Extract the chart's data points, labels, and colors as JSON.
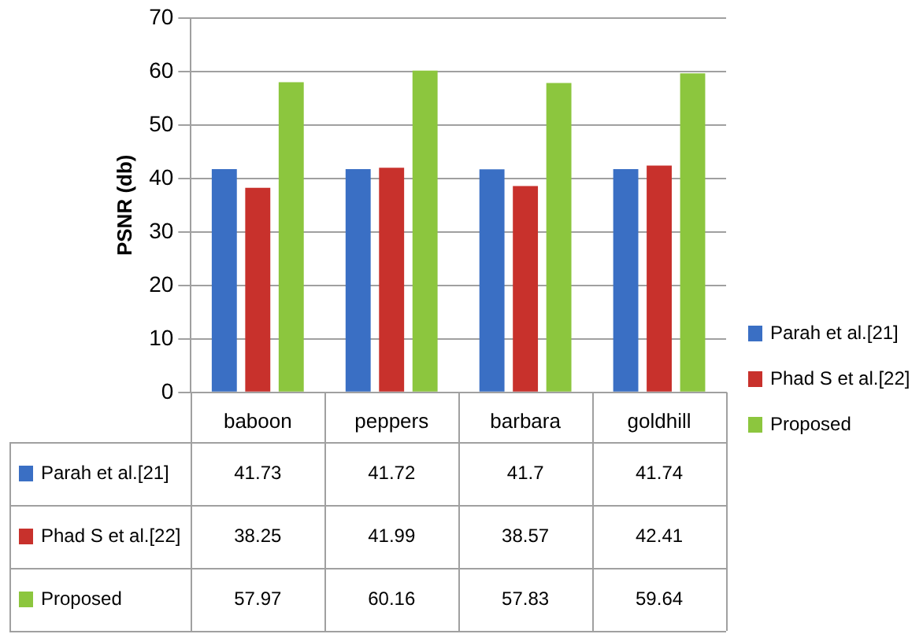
{
  "chart_data": {
    "type": "bar",
    "ylabel": "PSNR (db)",
    "categories": [
      "baboon",
      "peppers",
      "barbara",
      "goldhill"
    ],
    "series": [
      {
        "name": "Parah et al.[21]",
        "color": "#3a6fc4",
        "values": [
          41.73,
          41.72,
          41.7,
          41.74
        ]
      },
      {
        "name": "Phad S et al.[22]",
        "color": "#c8312c",
        "values": [
          38.25,
          41.99,
          38.57,
          42.41
        ]
      },
      {
        "name": "Proposed",
        "color": "#8cc63e",
        "values": [
          57.97,
          60.16,
          57.83,
          59.64
        ]
      }
    ],
    "ylim": [
      0,
      70
    ],
    "yticks": [
      0,
      10,
      20,
      30,
      40,
      50,
      60,
      70
    ],
    "grid": "y",
    "legend": "right",
    "data_labels": true
  }
}
